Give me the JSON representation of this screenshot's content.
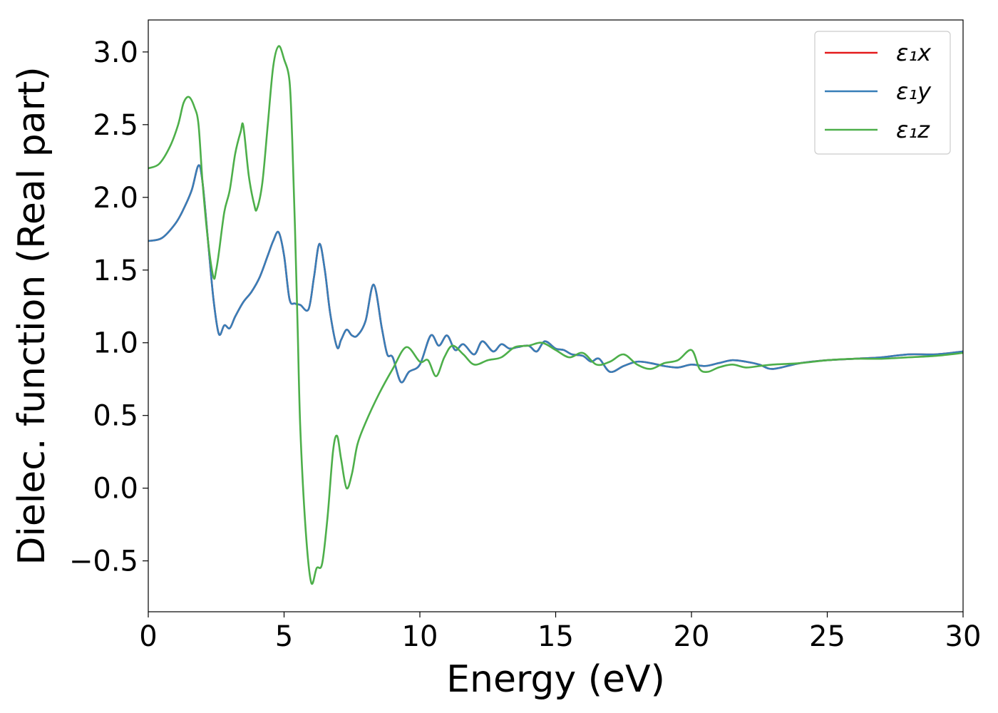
{
  "chart_data": {
    "type": "line",
    "xlabel": "Energy (eV)",
    "ylabel": "Dielec. function (Real part)",
    "xlim": [
      0,
      30
    ],
    "ylim": [
      -0.85,
      3.22
    ],
    "xticks": [
      0,
      5,
      10,
      15,
      20,
      25,
      30
    ],
    "xtick_labels": [
      "0",
      "5",
      "10",
      "15",
      "20",
      "25",
      "30"
    ],
    "yticks": [
      -0.5,
      0.0,
      0.5,
      1.0,
      1.5,
      2.0,
      2.5,
      3.0
    ],
    "ytick_labels": [
      "−0.5",
      "0.0",
      "0.5",
      "1.0",
      "1.5",
      "2.0",
      "2.5",
      "3.0"
    ],
    "grid": false,
    "legend_position": "top-right",
    "series": [
      {
        "name": "ε₁x",
        "color": "#e41a1c",
        "x": [
          0,
          0.5,
          1.0,
          1.3,
          1.6,
          1.85,
          2.0,
          2.2,
          2.4,
          2.6,
          2.8,
          3.0,
          3.2,
          3.5,
          3.8,
          4.1,
          4.4,
          4.6,
          4.8,
          5.0,
          5.2,
          5.4,
          5.6,
          5.9,
          6.1,
          6.3,
          6.5,
          6.7,
          6.95,
          7.1,
          7.3,
          7.5,
          7.7,
          8.0,
          8.3,
          8.6,
          8.8,
          9.0,
          9.3,
          9.6,
          10.0,
          10.4,
          10.7,
          11.0,
          11.3,
          11.6,
          12.0,
          12.3,
          12.7,
          13.0,
          13.3,
          13.6,
          14.0,
          14.3,
          14.6,
          15.0,
          15.3,
          15.6,
          16.0,
          16.3,
          16.6,
          17.0,
          17.5,
          18.0,
          18.5,
          19.0,
          19.5,
          20.0,
          20.5,
          21.0,
          21.5,
          22.0,
          22.5,
          23.0,
          24.0,
          25.0,
          26.0,
          27.0,
          28.0,
          29.0,
          30.0
        ],
        "values": [
          1.7,
          1.72,
          1.82,
          1.92,
          2.05,
          2.22,
          2.1,
          1.7,
          1.3,
          1.06,
          1.12,
          1.1,
          1.18,
          1.28,
          1.35,
          1.45,
          1.6,
          1.7,
          1.76,
          1.6,
          1.3,
          1.27,
          1.26,
          1.23,
          1.45,
          1.68,
          1.5,
          1.2,
          0.97,
          1.02,
          1.09,
          1.05,
          1.05,
          1.15,
          1.4,
          1.1,
          0.92,
          0.9,
          0.73,
          0.8,
          0.85,
          1.05,
          0.98,
          1.05,
          0.95,
          0.99,
          0.92,
          1.01,
          0.94,
          0.99,
          0.96,
          0.97,
          0.98,
          0.94,
          1.01,
          0.96,
          0.95,
          0.92,
          0.91,
          0.87,
          0.89,
          0.8,
          0.84,
          0.87,
          0.86,
          0.84,
          0.83,
          0.85,
          0.84,
          0.86,
          0.88,
          0.87,
          0.85,
          0.82,
          0.86,
          0.88,
          0.89,
          0.9,
          0.92,
          0.92,
          0.94
        ]
      },
      {
        "name": "ε₁y",
        "color": "#377eb8",
        "x": [
          0,
          0.5,
          1.0,
          1.3,
          1.6,
          1.85,
          2.0,
          2.2,
          2.4,
          2.6,
          2.8,
          3.0,
          3.2,
          3.5,
          3.8,
          4.1,
          4.4,
          4.6,
          4.8,
          5.0,
          5.2,
          5.4,
          5.6,
          5.9,
          6.1,
          6.3,
          6.5,
          6.7,
          6.95,
          7.1,
          7.3,
          7.5,
          7.7,
          8.0,
          8.3,
          8.6,
          8.8,
          9.0,
          9.3,
          9.6,
          10.0,
          10.4,
          10.7,
          11.0,
          11.3,
          11.6,
          12.0,
          12.3,
          12.7,
          13.0,
          13.3,
          13.6,
          14.0,
          14.3,
          14.6,
          15.0,
          15.3,
          15.6,
          16.0,
          16.3,
          16.6,
          17.0,
          17.5,
          18.0,
          18.5,
          19.0,
          19.5,
          20.0,
          20.5,
          21.0,
          21.5,
          22.0,
          22.5,
          23.0,
          24.0,
          25.0,
          26.0,
          27.0,
          28.0,
          29.0,
          30.0
        ],
        "values": [
          1.7,
          1.72,
          1.82,
          1.92,
          2.05,
          2.22,
          2.1,
          1.7,
          1.3,
          1.06,
          1.12,
          1.1,
          1.18,
          1.28,
          1.35,
          1.45,
          1.6,
          1.7,
          1.76,
          1.6,
          1.3,
          1.27,
          1.26,
          1.23,
          1.45,
          1.68,
          1.5,
          1.2,
          0.97,
          1.02,
          1.09,
          1.05,
          1.05,
          1.15,
          1.4,
          1.1,
          0.92,
          0.9,
          0.73,
          0.8,
          0.85,
          1.05,
          0.98,
          1.05,
          0.95,
          0.99,
          0.92,
          1.01,
          0.94,
          0.99,
          0.96,
          0.97,
          0.98,
          0.94,
          1.01,
          0.96,
          0.95,
          0.92,
          0.91,
          0.87,
          0.89,
          0.8,
          0.84,
          0.87,
          0.86,
          0.84,
          0.83,
          0.85,
          0.84,
          0.86,
          0.88,
          0.87,
          0.85,
          0.82,
          0.86,
          0.88,
          0.89,
          0.9,
          0.92,
          0.92,
          0.94
        ]
      },
      {
        "name": "ε₁z",
        "color": "#4daf4a",
        "x": [
          0,
          0.4,
          0.8,
          1.1,
          1.3,
          1.5,
          1.7,
          1.85,
          2.0,
          2.2,
          2.4,
          2.5,
          2.6,
          2.8,
          3.0,
          3.2,
          3.4,
          3.5,
          3.7,
          3.9,
          4.0,
          4.2,
          4.4,
          4.6,
          4.8,
          5.0,
          5.2,
          5.3,
          5.4,
          5.5,
          5.6,
          5.8,
          6.0,
          6.2,
          6.4,
          6.6,
          6.8,
          6.95,
          7.1,
          7.3,
          7.5,
          7.7,
          8.0,
          8.5,
          9.0,
          9.5,
          10.0,
          10.3,
          10.6,
          10.9,
          11.2,
          11.6,
          12.0,
          12.5,
          13.0,
          13.5,
          14.0,
          14.5,
          15.0,
          15.5,
          16.0,
          16.5,
          17.0,
          17.5,
          18.0,
          18.5,
          19.0,
          19.5,
          20.0,
          20.3,
          20.6,
          21.0,
          21.5,
          22.0,
          22.5,
          23.0,
          24.0,
          25.0,
          26.0,
          27.0,
          28.0,
          29.0,
          30.0
        ],
        "values": [
          2.2,
          2.23,
          2.35,
          2.5,
          2.65,
          2.69,
          2.62,
          2.5,
          2.1,
          1.7,
          1.45,
          1.5,
          1.62,
          1.9,
          2.05,
          2.3,
          2.45,
          2.49,
          2.15,
          1.95,
          1.92,
          2.1,
          2.5,
          2.9,
          3.04,
          2.95,
          2.8,
          2.4,
          1.8,
          1.1,
          0.4,
          -0.3,
          -0.65,
          -0.55,
          -0.52,
          -0.2,
          0.25,
          0.36,
          0.2,
          0.0,
          0.1,
          0.3,
          0.45,
          0.65,
          0.82,
          0.97,
          0.87,
          0.88,
          0.77,
          0.9,
          0.98,
          0.92,
          0.85,
          0.88,
          0.9,
          0.97,
          0.98,
          1.0,
          0.95,
          0.9,
          0.93,
          0.85,
          0.87,
          0.92,
          0.85,
          0.82,
          0.86,
          0.88,
          0.95,
          0.82,
          0.8,
          0.83,
          0.85,
          0.83,
          0.84,
          0.85,
          0.86,
          0.88,
          0.89,
          0.89,
          0.9,
          0.91,
          0.93
        ]
      }
    ]
  }
}
